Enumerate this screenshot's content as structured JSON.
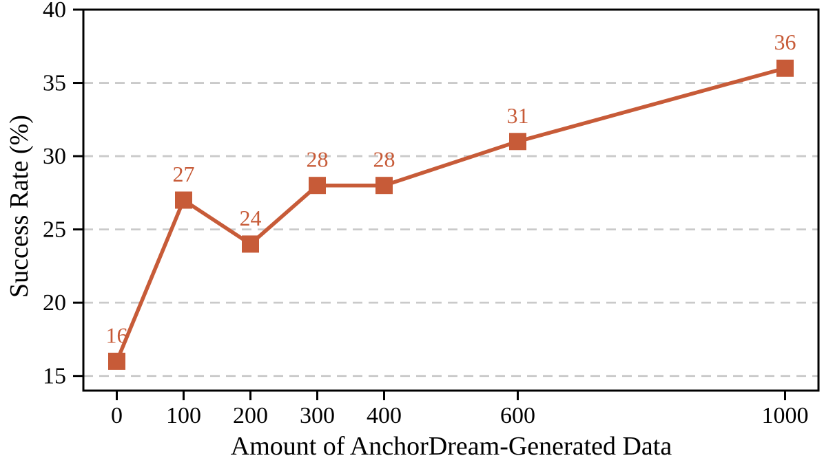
{
  "chart_data": {
    "type": "line",
    "title": "",
    "xlabel": "Amount of AnchorDream-Generated Data",
    "ylabel": "Success Rate (%)",
    "x": [
      0,
      100,
      200,
      300,
      400,
      600,
      1000
    ],
    "y": [
      16,
      27,
      24,
      28,
      28,
      31,
      36
    ],
    "point_labels": [
      "16",
      "27",
      "24",
      "28",
      "28",
      "31",
      "36"
    ],
    "x_ticks": [
      0,
      100,
      200,
      300,
      400,
      600,
      1000
    ],
    "x_tick_labels": [
      "0",
      "100",
      "200",
      "300",
      "400",
      "600",
      "1000"
    ],
    "y_ticks": [
      15,
      20,
      25,
      30,
      35,
      40
    ],
    "y_tick_labels": [
      "15",
      "20",
      "25",
      "30",
      "35",
      "40"
    ],
    "xlim": [
      -50,
      1050
    ],
    "ylim": [
      14,
      40
    ],
    "grid": "horizontal-dashed",
    "legend": "none",
    "series_name": "Success Rate",
    "series_color": "#C75B38",
    "grid_color": "#CACACA",
    "axis_color": "#000000",
    "background_color": "#FFFFFF",
    "marker": "square",
    "line_width": 5.5,
    "marker_size": 25
  }
}
